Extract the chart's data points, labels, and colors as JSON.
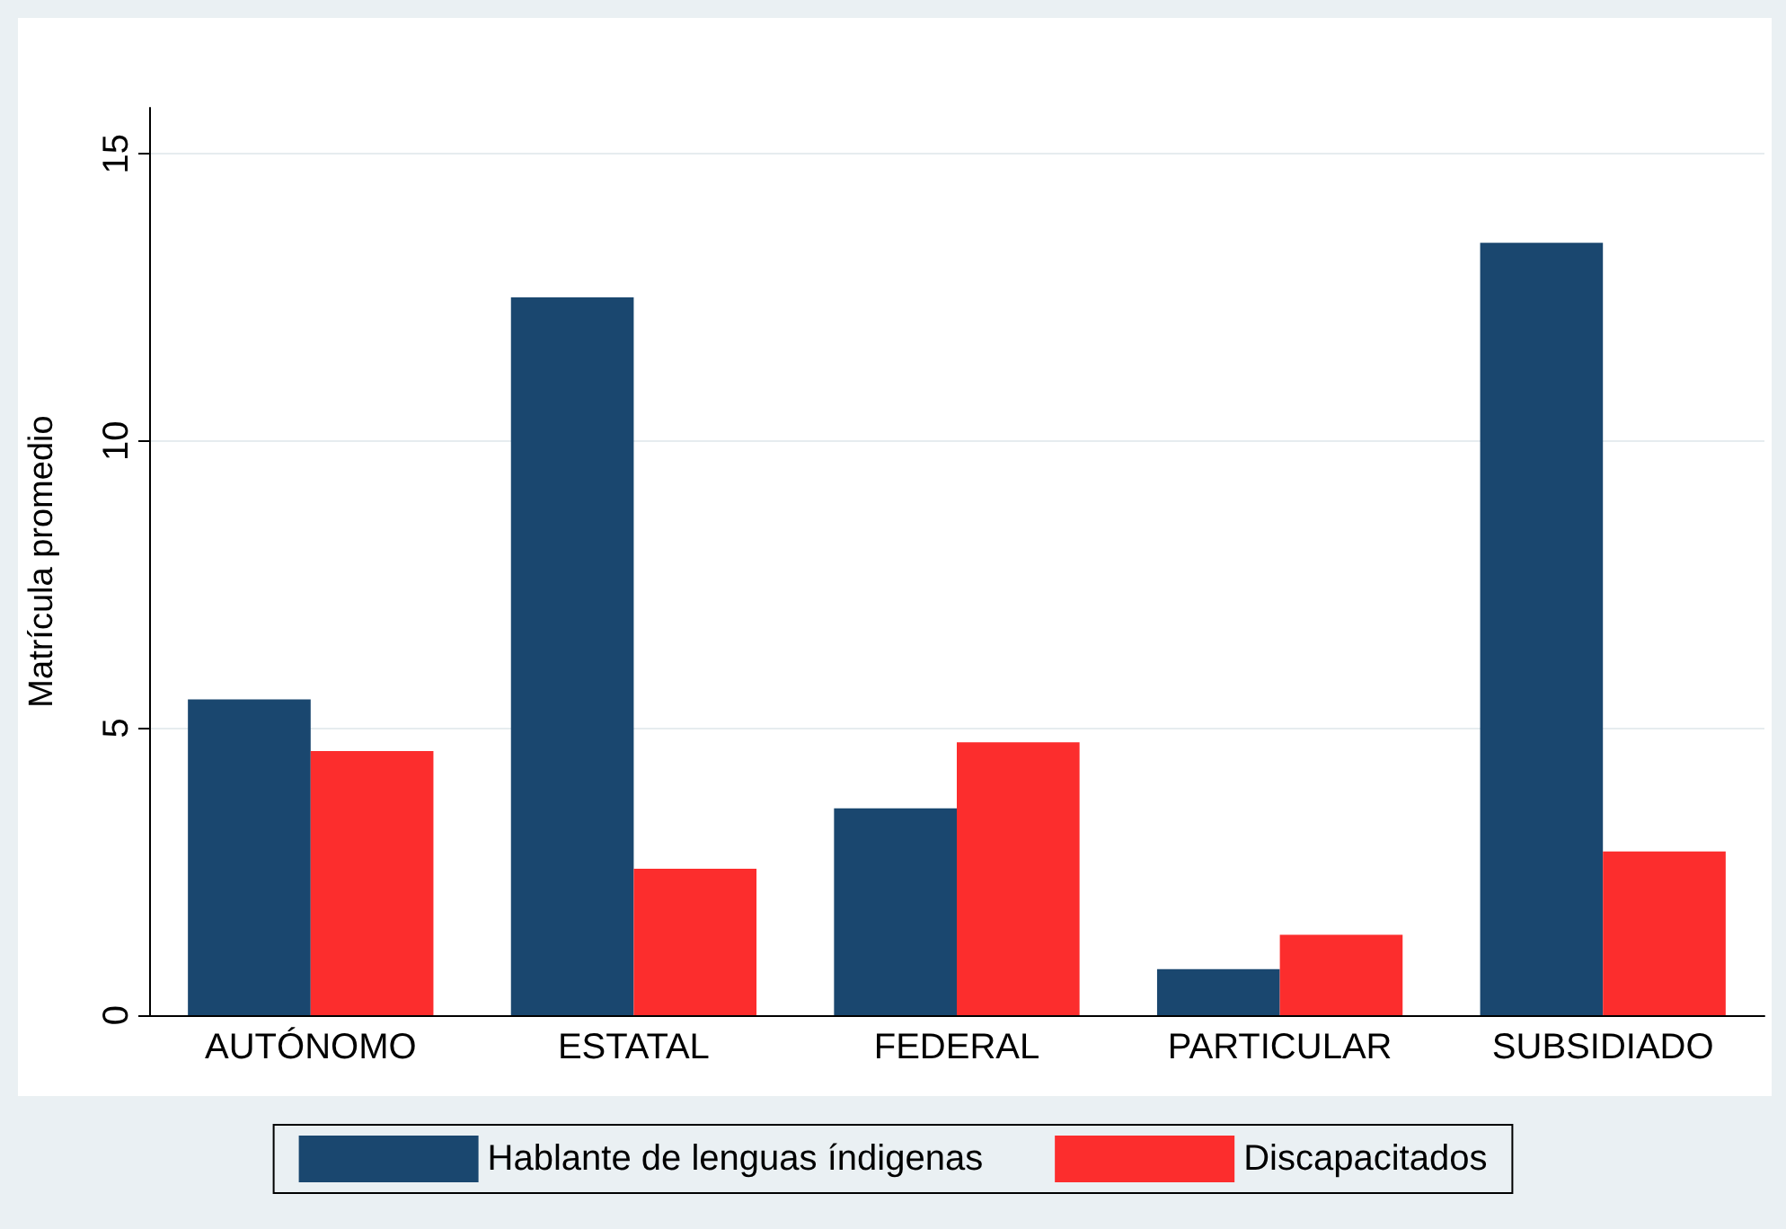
{
  "chart_data": {
    "type": "bar",
    "ylabel": "Matrícula promedio",
    "categories": [
      "AUTÓNOMO",
      "ESTATAL",
      "FEDERAL",
      "PARTICULAR",
      "SUBSIDIADO"
    ],
    "series": [
      {
        "name": "Hablante de lenguas índigenas",
        "color": "#1a476f",
        "values": [
          5.5,
          12.5,
          3.6,
          0.8,
          13.45
        ]
      },
      {
        "name": "Discapacitados",
        "color": "#fc2d2d",
        "values": [
          4.6,
          2.55,
          4.75,
          1.4,
          2.85
        ]
      }
    ],
    "ylim": [
      0,
      15.8
    ],
    "yticks": [
      0,
      5,
      10,
      15
    ],
    "grid": "y",
    "legend": "bottom"
  }
}
